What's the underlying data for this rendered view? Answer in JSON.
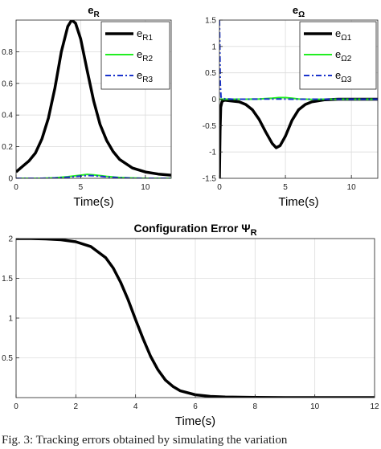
{
  "chart_data": [
    {
      "type": "line",
      "title": "e",
      "title_sub": "R",
      "xlabel": "Time(s)",
      "ylabel": "",
      "xlim": [
        0,
        12
      ],
      "ylim": [
        0,
        1
      ],
      "xticks": [
        0,
        5,
        10
      ],
      "yticks": [
        0,
        0.2,
        0.4,
        0.6,
        0.8
      ],
      "grid": true,
      "legend_position": "top-right",
      "series": [
        {
          "name": "eR1",
          "label_main": "e",
          "label_sub": "R1",
          "color": "#000000",
          "style": "solid",
          "x": [
            0,
            0.5,
            1,
            1.5,
            2,
            2.5,
            3,
            3.5,
            4,
            4.3,
            4.6,
            5,
            5.5,
            6,
            6.5,
            7,
            7.5,
            8,
            9,
            10,
            11,
            12
          ],
          "y": [
            0.04,
            0.075,
            0.11,
            0.16,
            0.25,
            0.38,
            0.57,
            0.8,
            0.96,
            1.0,
            0.98,
            0.88,
            0.68,
            0.49,
            0.34,
            0.24,
            0.17,
            0.12,
            0.065,
            0.04,
            0.027,
            0.02
          ]
        },
        {
          "name": "eR2",
          "label_main": "e",
          "label_sub": "R2",
          "color": "#22ee22",
          "style": "solid",
          "x": [
            0,
            2,
            3,
            4,
            5,
            5.5,
            6,
            7,
            8,
            9,
            10,
            12
          ],
          "y": [
            0.0,
            0.0,
            0.003,
            0.01,
            0.02,
            0.025,
            0.022,
            0.012,
            0.005,
            0.002,
            0.0,
            0.0
          ]
        },
        {
          "name": "eR3",
          "label_main": "e",
          "label_sub": "R3",
          "color": "#1a33cc",
          "style": "dashdot",
          "x": [
            0,
            2,
            3,
            4,
            5,
            5.5,
            6,
            7,
            8,
            9,
            10,
            12
          ],
          "y": [
            0.0,
            0.0,
            0.002,
            0.007,
            0.014,
            0.018,
            0.016,
            0.009,
            0.004,
            0.001,
            0.0,
            0.0
          ]
        }
      ]
    },
    {
      "type": "line",
      "title": "e",
      "title_sub": "Ω",
      "xlabel": "Time(s)",
      "ylabel": "",
      "xlim": [
        0,
        12
      ],
      "ylim": [
        -1.5,
        1.5
      ],
      "xticks": [
        0,
        5,
        10
      ],
      "yticks": [
        -1.5,
        -1,
        -0.5,
        0,
        0.5,
        1,
        1.5
      ],
      "grid": true,
      "legend_position": "top-right",
      "series": [
        {
          "name": "eΩ1",
          "label_main": "e",
          "label_sub": "Ω1",
          "color": "#000000",
          "style": "solid",
          "x": [
            0,
            0.05,
            0.1,
            0.2,
            0.4,
            0.8,
            1.5,
            2,
            2.5,
            3,
            3.5,
            4,
            4.3,
            4.6,
            5,
            5.5,
            6,
            6.5,
            7,
            8,
            9,
            10,
            12
          ],
          "y": [
            -1.5,
            -0.6,
            -0.15,
            -0.04,
            -0.02,
            -0.03,
            -0.05,
            -0.1,
            -0.2,
            -0.38,
            -0.62,
            -0.84,
            -0.92,
            -0.88,
            -0.7,
            -0.4,
            -0.2,
            -0.1,
            -0.05,
            -0.01,
            0.0,
            0.0,
            0.0
          ]
        },
        {
          "name": "eΩ2",
          "label_main": "e",
          "label_sub": "Ω2",
          "color": "#22ee22",
          "style": "solid",
          "x": [
            0,
            1,
            2,
            3,
            4,
            4.5,
            5,
            5.5,
            6,
            7,
            8,
            12
          ],
          "y": [
            0.0,
            0.0,
            0.0,
            0.005,
            0.02,
            0.03,
            0.03,
            0.018,
            0.005,
            -0.003,
            0.0,
            0.0
          ]
        },
        {
          "name": "eΩ3",
          "label_main": "e",
          "label_sub": "Ω3",
          "color": "#1a33cc",
          "style": "dashdot",
          "x": [
            0,
            0.02,
            0.06,
            0.12,
            0.3,
            1,
            2,
            4,
            6,
            8,
            12
          ],
          "y": [
            1.5,
            1.2,
            0.3,
            0.04,
            0.01,
            0.0,
            0.0,
            0.005,
            0.0,
            0.0,
            0.0
          ]
        }
      ]
    },
    {
      "type": "line",
      "title": "Configuration Error Ψ",
      "title_sub": "R",
      "xlabel": "Time(s)",
      "ylabel": "",
      "xlim": [
        0,
        12
      ],
      "ylim": [
        0,
        2
      ],
      "xticks": [
        0,
        2,
        4,
        6,
        8,
        10,
        12
      ],
      "yticks": [
        0.5,
        1,
        1.5,
        2
      ],
      "grid": true,
      "legend_position": "",
      "series": [
        {
          "name": "",
          "color": "#000000",
          "style": "solid",
          "x": [
            0,
            0.5,
            1,
            1.5,
            2,
            2.5,
            3,
            3.25,
            3.5,
            3.75,
            4,
            4.25,
            4.5,
            4.75,
            5,
            5.25,
            5.5,
            6,
            6.5,
            7,
            8,
            9,
            10,
            11,
            12
          ],
          "y": [
            2.0,
            2.0,
            1.995,
            1.985,
            1.96,
            1.9,
            1.76,
            1.63,
            1.45,
            1.23,
            0.98,
            0.74,
            0.52,
            0.35,
            0.22,
            0.14,
            0.085,
            0.035,
            0.015,
            0.007,
            0.002,
            0.0,
            0.0,
            0.0,
            0.0
          ]
        }
      ]
    }
  ],
  "caption": "Fig. 3: Tracking errors obtained by simulating the variation"
}
